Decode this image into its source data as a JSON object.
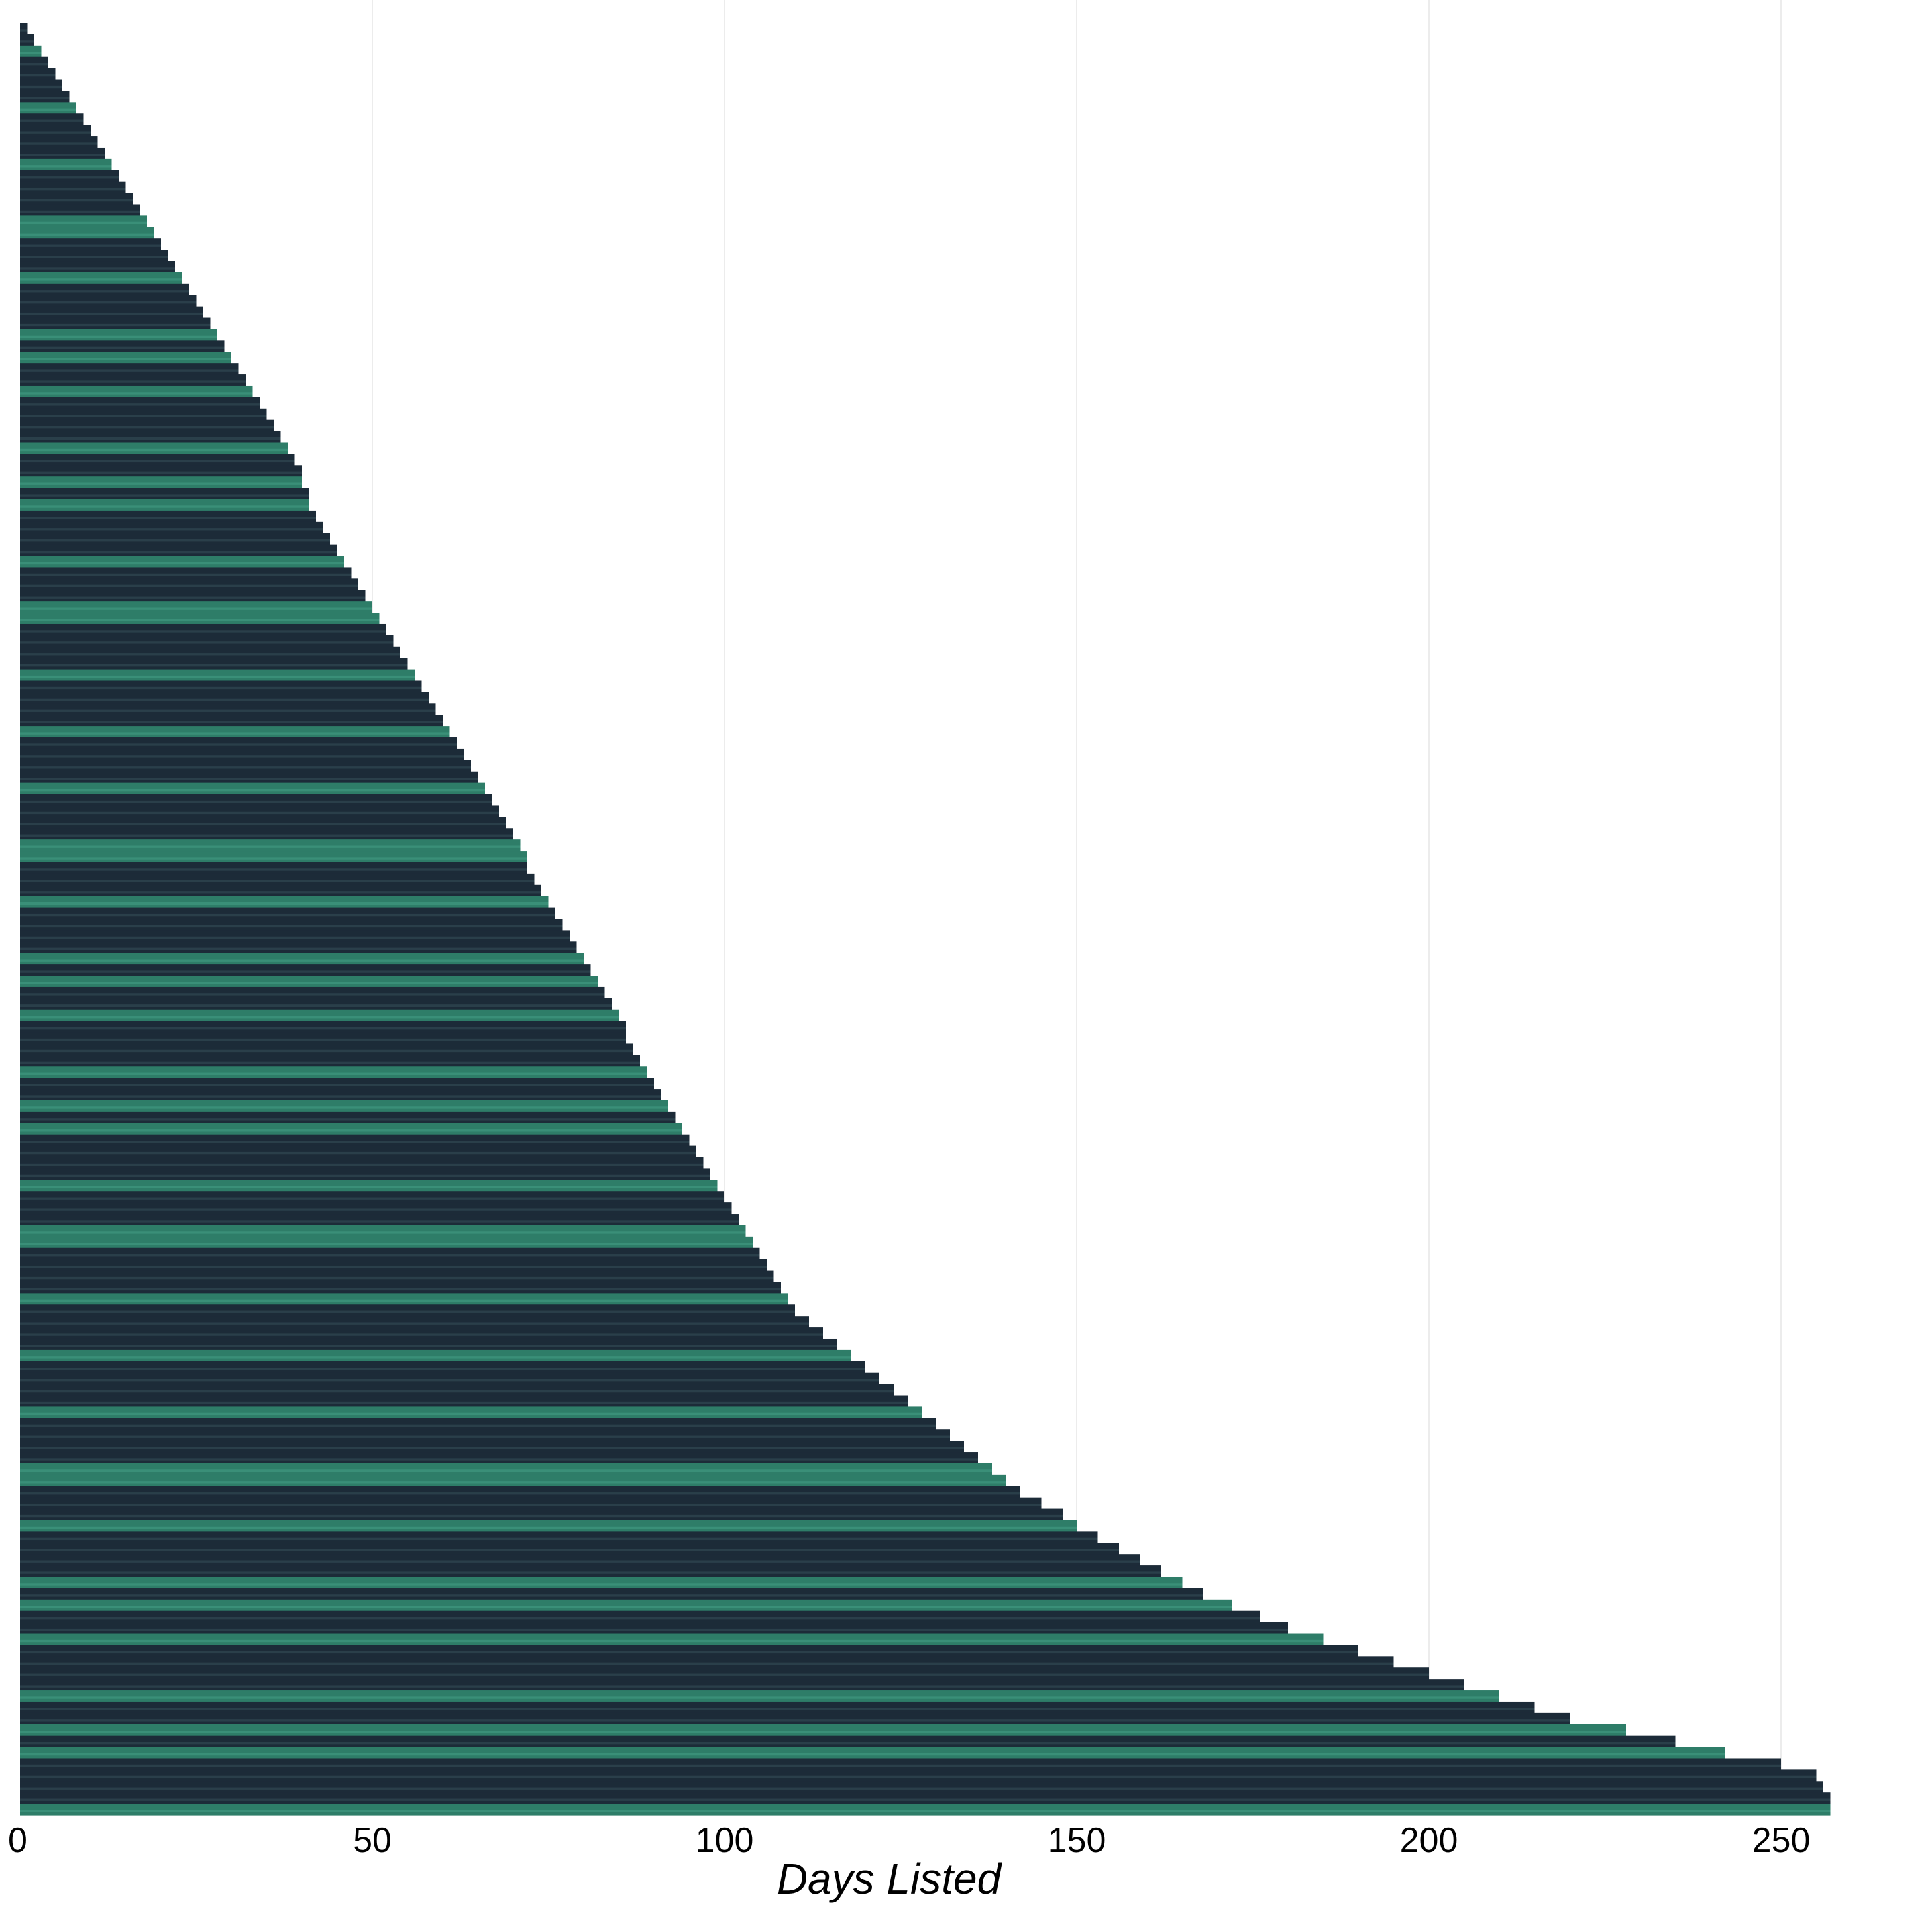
{
  "chart_data": {
    "type": "bar",
    "orientation": "horizontal",
    "xlabel": "Days Listed",
    "ylabel": "",
    "xlim": [
      0,
      258
    ],
    "x_ticks": [
      0,
      50,
      100,
      150,
      200,
      250
    ],
    "grid": "vertical",
    "legend": "none",
    "sorted": "ascending top-to-bottom",
    "values": [
      1,
      2,
      3,
      4,
      5,
      6,
      7,
      8,
      9,
      10,
      11,
      12,
      13,
      14,
      15,
      16,
      17,
      18,
      19,
      20,
      21,
      22,
      23,
      24,
      25,
      26,
      27,
      28,
      29,
      30,
      31,
      32,
      33,
      34,
      35,
      36,
      37,
      38,
      39,
      40,
      40,
      41,
      41,
      42,
      43,
      44,
      45,
      46,
      47,
      48,
      49,
      50,
      51,
      52,
      53,
      54,
      55,
      56,
      57,
      58,
      59,
      60,
      61,
      62,
      63,
      64,
      65,
      66,
      67,
      68,
      69,
      70,
      71,
      72,
      72,
      73,
      74,
      75,
      76,
      77,
      78,
      79,
      80,
      81,
      82,
      83,
      84,
      85,
      86,
      86,
      87,
      88,
      89,
      90,
      91,
      92,
      93,
      94,
      95,
      96,
      97,
      98,
      99,
      100,
      101,
      102,
      103,
      104,
      105,
      106,
      107,
      108,
      109,
      110,
      112,
      114,
      116,
      118,
      120,
      122,
      124,
      126,
      128,
      130,
      132,
      134,
      136,
      138,
      140,
      142,
      145,
      148,
      150,
      153,
      156,
      159,
      162,
      165,
      168,
      172,
      176,
      180,
      185,
      190,
      195,
      200,
      205,
      210,
      215,
      220,
      228,
      235,
      242,
      250,
      255,
      256,
      257,
      257
    ],
    "colors": {
      "bar_dark": "#1c2b38",
      "bar_green": "#2e7d68",
      "grid": "#ececec",
      "text": "#000000"
    }
  }
}
